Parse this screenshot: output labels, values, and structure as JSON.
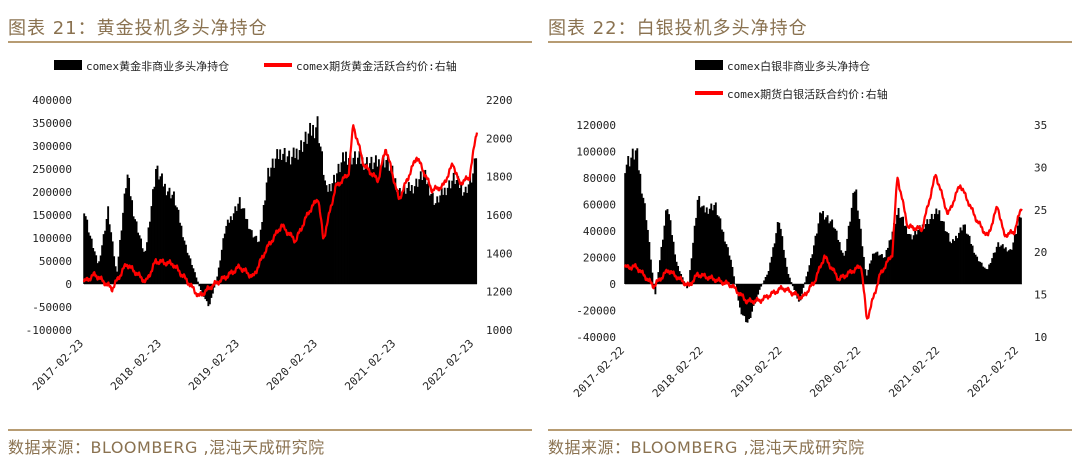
{
  "figures": [
    {
      "key": "gold",
      "title": "图表 21：黄金投机多头净持仓",
      "source": "数据来源：BLOOMBERG ,混沌天成研究院",
      "legend_position": "top",
      "chart_data": {
        "type": "bar",
        "x_axis": {
          "type": "date",
          "start": "2017-02-23",
          "end": "2022-03-08",
          "tick_labels": [
            "2017-02-23",
            "2018-02-23",
            "2019-02-23",
            "2020-02-23",
            "2021-02-23",
            "2022-02-23"
          ]
        },
        "left_axis": {
          "ylim": [
            -100000,
            400000
          ],
          "step": 50000,
          "tick_labels": [
            "-100000",
            "-50000",
            "0",
            "50000",
            "100000",
            "150000",
            "200000",
            "250000",
            "300000",
            "350000",
            "400000"
          ]
        },
        "right_axis": {
          "ylim": [
            1000,
            2200
          ],
          "step": 200,
          "tick_labels": [
            "1000",
            "1200",
            "1400",
            "1600",
            "1800",
            "2000",
            "2200"
          ]
        },
        "series": [
          {
            "name": "comex黄金非商业多头净持仓",
            "type": "bar",
            "axis": "left",
            "color": "#000000",
            "points": [
              [
                "2017-02-23",
                165000
              ],
              [
                "2017-03-20",
                110000
              ],
              [
                "2017-05-01",
                40000
              ],
              [
                "2017-06-15",
                160000
              ],
              [
                "2017-07-25",
                20000
              ],
              [
                "2017-09-12",
                240000
              ],
              [
                "2017-10-15",
                150000
              ],
              [
                "2017-12-05",
                60000
              ],
              [
                "2018-01-25",
                250000
              ],
              [
                "2018-03-10",
                210000
              ],
              [
                "2018-04-20",
                190000
              ],
              [
                "2018-06-15",
                80000
              ],
              [
                "2018-08-20",
                -10000
              ],
              [
                "2018-10-01",
                -50000
              ],
              [
                "2018-11-10",
                20000
              ],
              [
                "2018-12-15",
                120000
              ],
              [
                "2019-02-20",
                180000
              ],
              [
                "2019-04-20",
                110000
              ],
              [
                "2019-05-25",
                90000
              ],
              [
                "2019-07-01",
                240000
              ],
              [
                "2019-09-05",
                290000
              ],
              [
                "2019-10-20",
                270000
              ],
              [
                "2020-01-05",
                320000
              ],
              [
                "2020-02-20",
                350000
              ],
              [
                "2020-04-01",
                200000
              ],
              [
                "2020-05-10",
                230000
              ],
              [
                "2020-07-01",
                280000
              ],
              [
                "2020-09-01",
                270000
              ],
              [
                "2020-11-10",
                260000
              ],
              [
                "2021-01-10",
                270000
              ],
              [
                "2021-03-10",
                200000
              ],
              [
                "2021-05-10",
                210000
              ],
              [
                "2021-07-01",
                240000
              ],
              [
                "2021-08-25",
                175000
              ],
              [
                "2021-10-01",
                200000
              ],
              [
                "2021-11-20",
                230000
              ],
              [
                "2022-01-10",
                200000
              ],
              [
                "2022-02-20",
                240000
              ],
              [
                "2022-03-08",
                300000
              ]
            ]
          },
          {
            "name": "comex期货黄金活跃合约价:右轴",
            "type": "line",
            "axis": "right",
            "color": "#ff0000",
            "points": [
              [
                "2017-02-23",
                1250
              ],
              [
                "2017-04-15",
                1290
              ],
              [
                "2017-07-05",
                1215
              ],
              [
                "2017-09-10",
                1345
              ],
              [
                "2017-12-10",
                1250
              ],
              [
                "2018-01-25",
                1360
              ],
              [
                "2018-04-15",
                1345
              ],
              [
                "2018-06-25",
                1250
              ],
              [
                "2018-08-15",
                1175
              ],
              [
                "2018-10-15",
                1230
              ],
              [
                "2019-01-05",
                1290
              ],
              [
                "2019-02-20",
                1330
              ],
              [
                "2019-04-25",
                1275
              ],
              [
                "2019-06-25",
                1420
              ],
              [
                "2019-09-05",
                1545
              ],
              [
                "2019-11-10",
                1465
              ],
              [
                "2020-01-08",
                1610
              ],
              [
                "2020-02-24",
                1690
              ],
              [
                "2020-03-19",
                1470
              ],
              [
                "2020-05-15",
                1745
              ],
              [
                "2020-07-15",
                1815
              ],
              [
                "2020-08-06",
                2070
              ],
              [
                "2020-09-25",
                1860
              ],
              [
                "2020-11-30",
                1780
              ],
              [
                "2021-01-05",
                1950
              ],
              [
                "2021-03-08",
                1680
              ],
              [
                "2021-05-30",
                1905
              ],
              [
                "2021-08-10",
                1730
              ],
              [
                "2021-09-30",
                1750
              ],
              [
                "2021-11-16",
                1870
              ],
              [
                "2021-12-15",
                1765
              ],
              [
                "2022-01-31",
                1795
              ],
              [
                "2022-03-08",
                2045
              ]
            ]
          }
        ]
      }
    },
    {
      "key": "silver",
      "title": "图表 22：白银投机多头净持仓",
      "source": "数据来源：BLOOMBERG ,混沌天成研究院",
      "legend_position": "top",
      "chart_data": {
        "type": "bar",
        "x_axis": {
          "type": "date",
          "start": "2017-02-22",
          "end": "2022-03-08",
          "tick_labels": [
            "2017-02-22",
            "2018-02-22",
            "2019-02-22",
            "2020-02-22",
            "2021-02-22",
            "2022-02-22"
          ]
        },
        "left_axis": {
          "ylim": [
            -40000,
            120000
          ],
          "step": 20000,
          "tick_labels": [
            "-40000",
            "-20000",
            "0",
            "20000",
            "40000",
            "60000",
            "80000",
            "100000",
            "120000"
          ]
        },
        "right_axis": {
          "ylim": [
            10,
            35
          ],
          "step": 5,
          "tick_labels": [
            "10",
            "15",
            "20",
            "25",
            "30",
            "35"
          ]
        },
        "series": [
          {
            "name": "comex白银非商业多头净持仓",
            "type": "bar",
            "axis": "left",
            "color": "#000000",
            "points": [
              [
                "2017-02-22",
                90000
              ],
              [
                "2017-04-15",
                100000
              ],
              [
                "2017-06-01",
                50000
              ],
              [
                "2017-07-10",
                -10000
              ],
              [
                "2017-09-05",
                60000
              ],
              [
                "2017-10-20",
                15000
              ],
              [
                "2017-12-10",
                -5000
              ],
              [
                "2018-01-25",
                65000
              ],
              [
                "2018-02-22",
                55000
              ],
              [
                "2018-04-15",
                60000
              ],
              [
                "2018-05-20",
                40000
              ],
              [
                "2018-06-25",
                20000
              ],
              [
                "2018-08-10",
                -20000
              ],
              [
                "2018-09-15",
                -30000
              ],
              [
                "2018-11-05",
                -5000
              ],
              [
                "2018-12-20",
                10000
              ],
              [
                "2019-02-05",
                50000
              ],
              [
                "2019-03-15",
                10000
              ],
              [
                "2019-05-10",
                -15000
              ],
              [
                "2019-07-05",
                20000
              ],
              [
                "2019-08-20",
                55000
              ],
              [
                "2019-10-15",
                45000
              ],
              [
                "2019-12-05",
                20000
              ],
              [
                "2020-01-25",
                75000
              ],
              [
                "2020-03-15",
                5000
              ],
              [
                "2020-04-20",
                25000
              ],
              [
                "2020-06-10",
                20000
              ],
              [
                "2020-08-10",
                55000
              ],
              [
                "2020-10-10",
                35000
              ],
              [
                "2020-12-10",
                45000
              ],
              [
                "2021-02-15",
                55000
              ],
              [
                "2021-04-15",
                30000
              ],
              [
                "2021-06-10",
                45000
              ],
              [
                "2021-08-10",
                20000
              ],
              [
                "2021-09-25",
                10000
              ],
              [
                "2021-11-15",
                30000
              ],
              [
                "2022-01-15",
                25000
              ],
              [
                "2022-03-08",
                55000
              ]
            ]
          },
          {
            "name": "comex期货白银活跃合约价:右轴",
            "type": "line",
            "axis": "right",
            "color": "#ff0000",
            "points": [
              [
                "2017-02-22",
                18.2
              ],
              [
                "2017-04-15",
                18.3
              ],
              [
                "2017-07-05",
                16.0
              ],
              [
                "2017-09-10",
                17.9
              ],
              [
                "2017-12-15",
                16.0
              ],
              [
                "2018-01-25",
                17.4
              ],
              [
                "2018-04-15",
                16.8
              ],
              [
                "2018-07-01",
                16.1
              ],
              [
                "2018-09-10",
                14.2
              ],
              [
                "2018-11-10",
                14.3
              ],
              [
                "2019-02-22",
                15.8
              ],
              [
                "2019-05-25",
                14.6
              ],
              [
                "2019-07-20",
                16.5
              ],
              [
                "2019-09-04",
                19.5
              ],
              [
                "2019-11-10",
                16.8
              ],
              [
                "2020-02-22",
                18.4
              ],
              [
                "2020-03-19",
                12.0
              ],
              [
                "2020-05-20",
                17.4
              ],
              [
                "2020-07-15",
                19.8
              ],
              [
                "2020-08-07",
                29.0
              ],
              [
                "2020-09-25",
                23.0
              ],
              [
                "2020-11-30",
                22.7
              ],
              [
                "2021-02-01",
                29.2
              ],
              [
                "2021-03-30",
                24.4
              ],
              [
                "2021-05-25",
                28.0
              ],
              [
                "2021-08-10",
                23.8
              ],
              [
                "2021-09-30",
                21.8
              ],
              [
                "2021-11-15",
                25.5
              ],
              [
                "2021-12-15",
                22.0
              ],
              [
                "2022-01-31",
                22.4
              ],
              [
                "2022-03-08",
                25.5
              ]
            ]
          }
        ]
      }
    }
  ]
}
